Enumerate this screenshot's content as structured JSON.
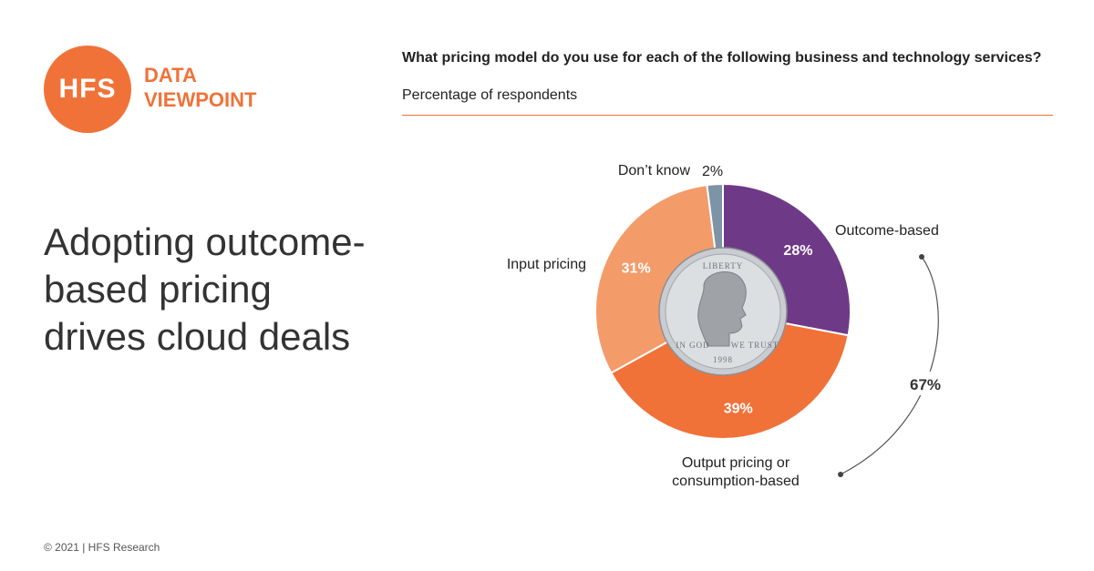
{
  "logo": {
    "mark": "HFS",
    "line1": "DATA",
    "line2": "VIEWPOINT",
    "color": "#f07238"
  },
  "headline": "Adopting outcome-based pricing drives cloud deals",
  "footer": "© 2021 | HFS Research",
  "coin": {
    "top_text": "LIBERTY",
    "left_text": "IN GOD",
    "right_text": "WE TRUST",
    "year": "1998"
  },
  "chart_data": {
    "type": "pie",
    "title": "What pricing model do you use for each of the following business and technology services?",
    "subtitle": "Percentage of respondents",
    "categories": [
      "Outcome-based",
      "Output pricing or consumption-based",
      "Input pricing",
      "Don’t know"
    ],
    "label_lines": [
      [
        "Outcome-based"
      ],
      [
        "Output pricing or",
        "consumption-based"
      ],
      [
        "Input pricing"
      ],
      [
        "Don’t know"
      ]
    ],
    "values": [
      28,
      39,
      31,
      2
    ],
    "value_labels": [
      "28%",
      "39%",
      "31%",
      "2%"
    ],
    "colors": [
      "#6e3a87",
      "#f07238",
      "#f49b6a",
      "#7d93a6"
    ],
    "donut": true,
    "annotation": {
      "label": "67%",
      "spans": [
        "Outcome-based",
        "Output pricing or consumption-based"
      ]
    }
  }
}
